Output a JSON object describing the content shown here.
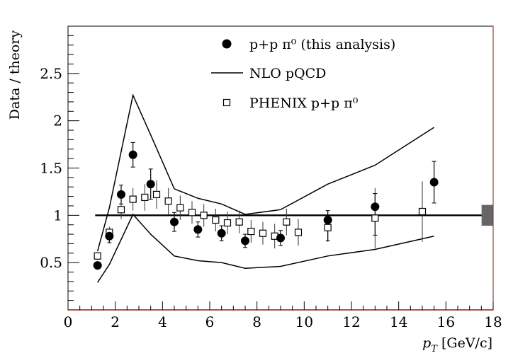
{
  "chart_data": {
    "type": "scatter",
    "xlabel": "p_T [GeV/c]",
    "xlabel_main": "p",
    "xlabel_sub": "T",
    "xlabel_units": "[GeV/c]",
    "ylabel": "Data / theory",
    "xlim": [
      0,
      18
    ],
    "ylim": [
      0,
      3.0
    ],
    "x_ticks": [
      0,
      2,
      4,
      6,
      8,
      10,
      12,
      14,
      16,
      18
    ],
    "x_tick_labels": [
      "0",
      "2",
      "4",
      "6",
      "8",
      "10",
      "12",
      "14",
      "16",
      "18"
    ],
    "y_ticks": [
      0.5,
      1,
      1.5,
      2,
      2.5
    ],
    "y_tick_labels": [
      "0.5",
      "1",
      "1.5",
      "2",
      "2.5"
    ],
    "reference_line": 1.0,
    "normalization_band": {
      "x": 17.75,
      "low": 0.89,
      "high": 1.11
    },
    "legend": {
      "position": "top-right",
      "entries": [
        {
          "marker": "filled-circle",
          "label": "p+p π⁰ (this analysis)"
        },
        {
          "marker": "line",
          "label": "NLO pQCD"
        },
        {
          "marker": "open-square",
          "label": "PHENIX p+p π⁰"
        }
      ]
    },
    "series": [
      {
        "name": "p+p π⁰ (this analysis)",
        "marker": "filled-circle",
        "x": [
          1.25,
          1.75,
          2.25,
          2.75,
          3.5,
          4.5,
          5.5,
          6.5,
          7.5,
          9.0,
          11.0,
          13.0,
          15.5
        ],
        "y": [
          0.47,
          0.78,
          1.22,
          1.64,
          1.33,
          0.93,
          0.85,
          0.81,
          0.73,
          0.76,
          0.95,
          1.09,
          1.35
        ],
        "err_low": [
          0.03,
          0.07,
          0.1,
          0.13,
          0.16,
          0.1,
          0.08,
          0.08,
          0.07,
          0.08,
          0.22,
          0.3,
          0.22
        ],
        "err_high": [
          0.03,
          0.07,
          0.1,
          0.13,
          0.16,
          0.1,
          0.08,
          0.08,
          0.07,
          0.08,
          0.1,
          0.14,
          0.22
        ]
      },
      {
        "name": "PHENIX p+p π⁰",
        "marker": "open-square",
        "x": [
          1.25,
          1.75,
          2.25,
          2.75,
          3.25,
          3.75,
          4.25,
          4.75,
          5.25,
          5.75,
          6.25,
          6.75,
          7.25,
          7.75,
          8.25,
          8.75,
          9.25,
          9.75,
          11.0,
          13.0,
          15.0
        ],
        "y": [
          0.57,
          0.82,
          1.06,
          1.17,
          1.19,
          1.22,
          1.15,
          1.08,
          1.03,
          1.0,
          0.95,
          0.92,
          0.93,
          0.83,
          0.81,
          0.78,
          0.93,
          0.82,
          0.87,
          0.97,
          1.04
        ],
        "err": [
          0.04,
          0.06,
          0.1,
          0.12,
          0.14,
          0.15,
          0.14,
          0.13,
          0.12,
          0.12,
          0.12,
          0.12,
          0.12,
          0.12,
          0.12,
          0.13,
          0.14,
          0.14,
          0.15,
          0.32,
          0.32
        ]
      }
    ],
    "band": {
      "name": "NLO pQCD",
      "upper": {
        "x": [
          1.25,
          1.75,
          2.75,
          3.5,
          4.5,
          5.5,
          6.5,
          7.5,
          9.0,
          11.0,
          13.0,
          15.5
        ],
        "y": [
          0.62,
          1.08,
          2.27,
          1.85,
          1.28,
          1.18,
          1.12,
          1.01,
          1.06,
          1.33,
          1.53,
          1.93
        ]
      },
      "lower": {
        "x": [
          1.25,
          1.75,
          2.75,
          3.5,
          4.5,
          5.5,
          6.5,
          7.5,
          9.0,
          11.0,
          13.0,
          15.5
        ],
        "y": [
          0.29,
          0.48,
          1.01,
          0.8,
          0.57,
          0.52,
          0.5,
          0.44,
          0.46,
          0.57,
          0.64,
          0.78
        ]
      }
    }
  }
}
